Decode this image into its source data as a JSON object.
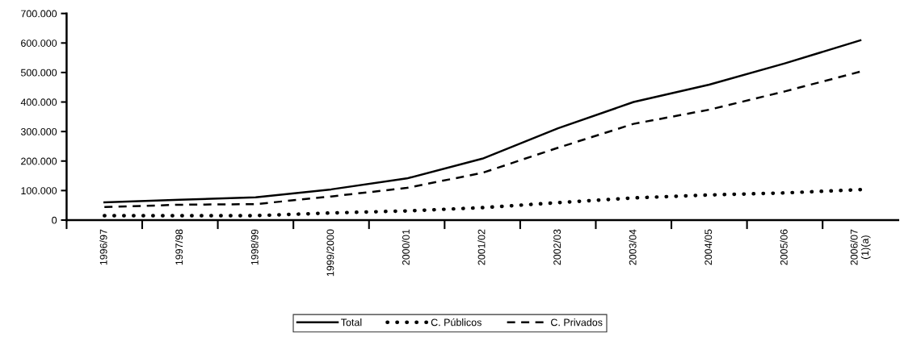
{
  "chart_data": {
    "type": "line",
    "categories": [
      "1996/97",
      "1997/98",
      "1998/99",
      "1999/2000",
      "2000/01",
      "2001/02",
      "2002/03",
      "2003/04",
      "2004/05",
      "2005/06",
      "2006/07\n(1)(a)"
    ],
    "series": [
      {
        "name": "Total",
        "color": "#000000",
        "line_style": "solid",
        "values": [
          60000,
          69000,
          77000,
          104000,
          141000,
          208000,
          311000,
          400000,
          459000,
          531000,
          609000
        ]
      },
      {
        "name": "C. Públicos",
        "color": "#000000",
        "line_style": "dotted",
        "values": [
          15000,
          15000,
          15000,
          24000,
          31000,
          42000,
          59000,
          75000,
          85000,
          92000,
          103000
        ]
      },
      {
        "name": "C. Privados",
        "color": "#000000",
        "line_style": "dashed",
        "values": [
          44000,
          52000,
          54000,
          80000,
          109000,
          160000,
          245000,
          326000,
          374000,
          436000,
          503000
        ]
      }
    ],
    "ylim": [
      0,
      700000
    ],
    "yticks": [
      {
        "value": 0,
        "label": "0"
      },
      {
        "value": 100000,
        "label": "100.000"
      },
      {
        "value": 200000,
        "label": "200.000"
      },
      {
        "value": 300000,
        "label": "300.000"
      },
      {
        "value": 400000,
        "label": "400.000"
      },
      {
        "value": 500000,
        "label": "500.000"
      },
      {
        "value": 600000,
        "label": "600.000"
      },
      {
        "value": 700000,
        "label": "700.000"
      }
    ],
    "grid": false,
    "legend": "bottom",
    "marker": "none"
  }
}
